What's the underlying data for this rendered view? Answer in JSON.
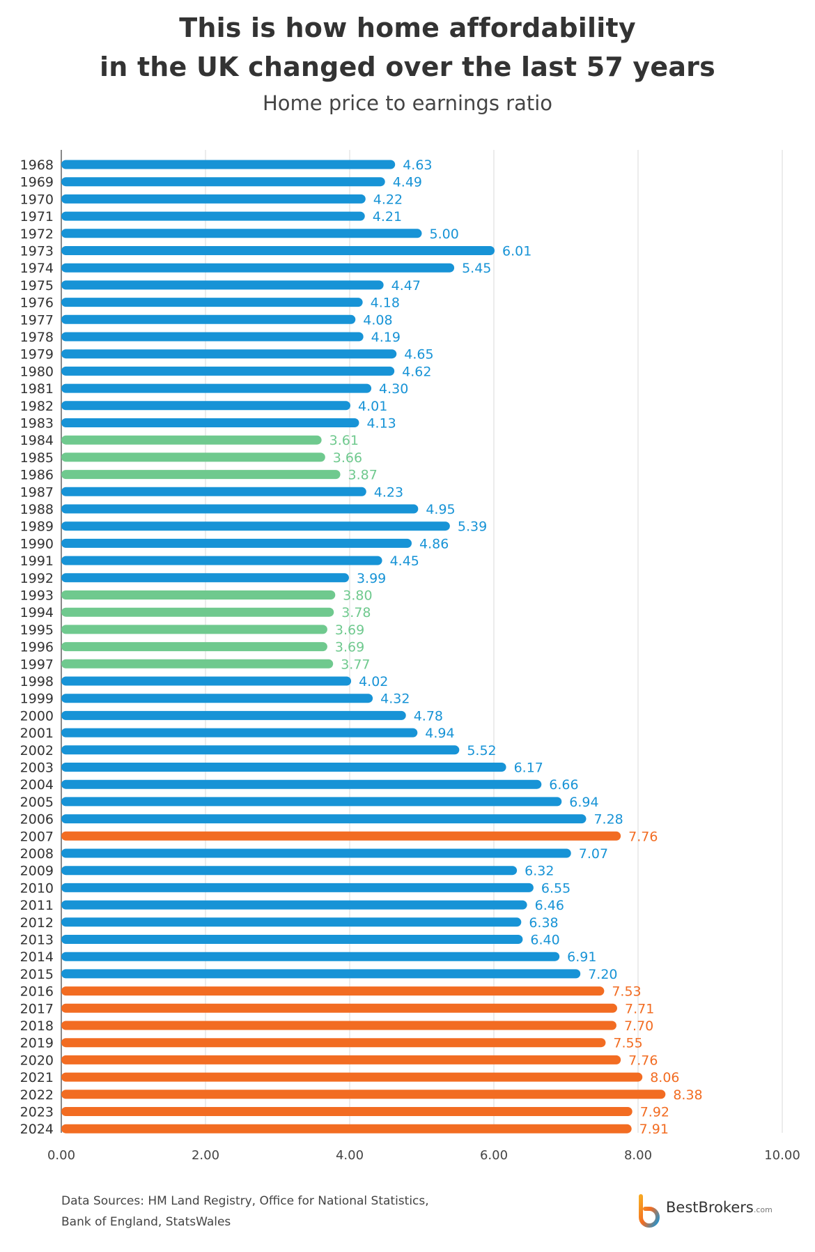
{
  "header": {
    "title_line1": "This is how home affordability",
    "title_line2": "in the UK changed over the last 57 years",
    "subtitle": "Home price to earnings ratio"
  },
  "colors": {
    "normal": "#1793d6",
    "low": "#6fc98e",
    "high": "#f26c22",
    "grid": "#d9d9d9",
    "axis": "#888888"
  },
  "chart_data": {
    "type": "bar",
    "orientation": "horizontal",
    "title": "This is how home affordability in the UK changed over the last 57 years",
    "subtitle": "Home price to earnings ratio",
    "xlim": [
      0,
      10
    ],
    "x_ticks": [
      "0.00",
      "2.00",
      "4.00",
      "6.00",
      "8.00",
      "10.00"
    ],
    "grid": true,
    "categories": [
      "1968",
      "1969",
      "1970",
      "1971",
      "1972",
      "1973",
      "1974",
      "1975",
      "1976",
      "1977",
      "1978",
      "1979",
      "1980",
      "1981",
      "1982",
      "1983",
      "1984",
      "1985",
      "1986",
      "1987",
      "1988",
      "1989",
      "1990",
      "1991",
      "1992",
      "1993",
      "1994",
      "1995",
      "1996",
      "1997",
      "1998",
      "1999",
      "2000",
      "2001",
      "2002",
      "2003",
      "2004",
      "2005",
      "2006",
      "2007",
      "2008",
      "2009",
      "2010",
      "2011",
      "2012",
      "2013",
      "2014",
      "2015",
      "2016",
      "2017",
      "2018",
      "2019",
      "2020",
      "2021",
      "2022",
      "2023",
      "2024"
    ],
    "values": [
      4.63,
      4.49,
      4.22,
      4.21,
      5.0,
      6.01,
      5.45,
      4.47,
      4.18,
      4.08,
      4.19,
      4.65,
      4.62,
      4.3,
      4.01,
      4.13,
      3.61,
      3.66,
      3.87,
      4.23,
      4.95,
      5.39,
      4.86,
      4.45,
      3.99,
      3.8,
      3.78,
      3.69,
      3.69,
      3.77,
      4.02,
      4.32,
      4.78,
      4.94,
      5.52,
      6.17,
      6.66,
      6.94,
      7.28,
      7.76,
      7.07,
      6.32,
      6.55,
      6.46,
      6.38,
      6.4,
      6.91,
      7.2,
      7.53,
      7.71,
      7.7,
      7.55,
      7.76,
      8.06,
      8.38,
      7.92,
      7.91
    ],
    "labels": [
      "4.63",
      "4.49",
      "4.22",
      "4.21",
      "5.00",
      "6.01",
      "5.45",
      "4.47",
      "4.18",
      "4.08",
      "4.19",
      "4.65",
      "4.62",
      "4.30",
      "4.01",
      "4.13",
      "3.61",
      "3.66",
      "3.87",
      "4.23",
      "4.95",
      "5.39",
      "4.86",
      "4.45",
      "3.99",
      "3.80",
      "3.78",
      "3.69",
      "3.69",
      "3.77",
      "4.02",
      "4.32",
      "4.78",
      "4.94",
      "5.52",
      "6.17",
      "6.66",
      "6.94",
      "7.28",
      "7.76",
      "7.07",
      "6.32",
      "6.55",
      "6.46",
      "6.38",
      "6.40",
      "6.91",
      "7.20",
      "7.53",
      "7.71",
      "7.70",
      "7.55",
      "7.76",
      "8.06",
      "8.38",
      "7.92",
      "7.91"
    ],
    "groups": [
      "normal",
      "normal",
      "normal",
      "normal",
      "normal",
      "normal",
      "normal",
      "normal",
      "normal",
      "normal",
      "normal",
      "normal",
      "normal",
      "normal",
      "normal",
      "normal",
      "low",
      "low",
      "low",
      "normal",
      "normal",
      "normal",
      "normal",
      "normal",
      "normal",
      "low",
      "low",
      "low",
      "low",
      "low",
      "normal",
      "normal",
      "normal",
      "normal",
      "normal",
      "normal",
      "normal",
      "normal",
      "normal",
      "high",
      "normal",
      "normal",
      "normal",
      "normal",
      "normal",
      "normal",
      "normal",
      "normal",
      "high",
      "high",
      "high",
      "high",
      "high",
      "high",
      "high",
      "high",
      "high"
    ]
  },
  "footer": {
    "source_line1": "Data Sources: HM Land Registry, Office for National Statistics,",
    "source_line2": "Bank of England, StatsWales",
    "logo_text": "BestBrokers",
    "logo_suffix": ".com"
  }
}
